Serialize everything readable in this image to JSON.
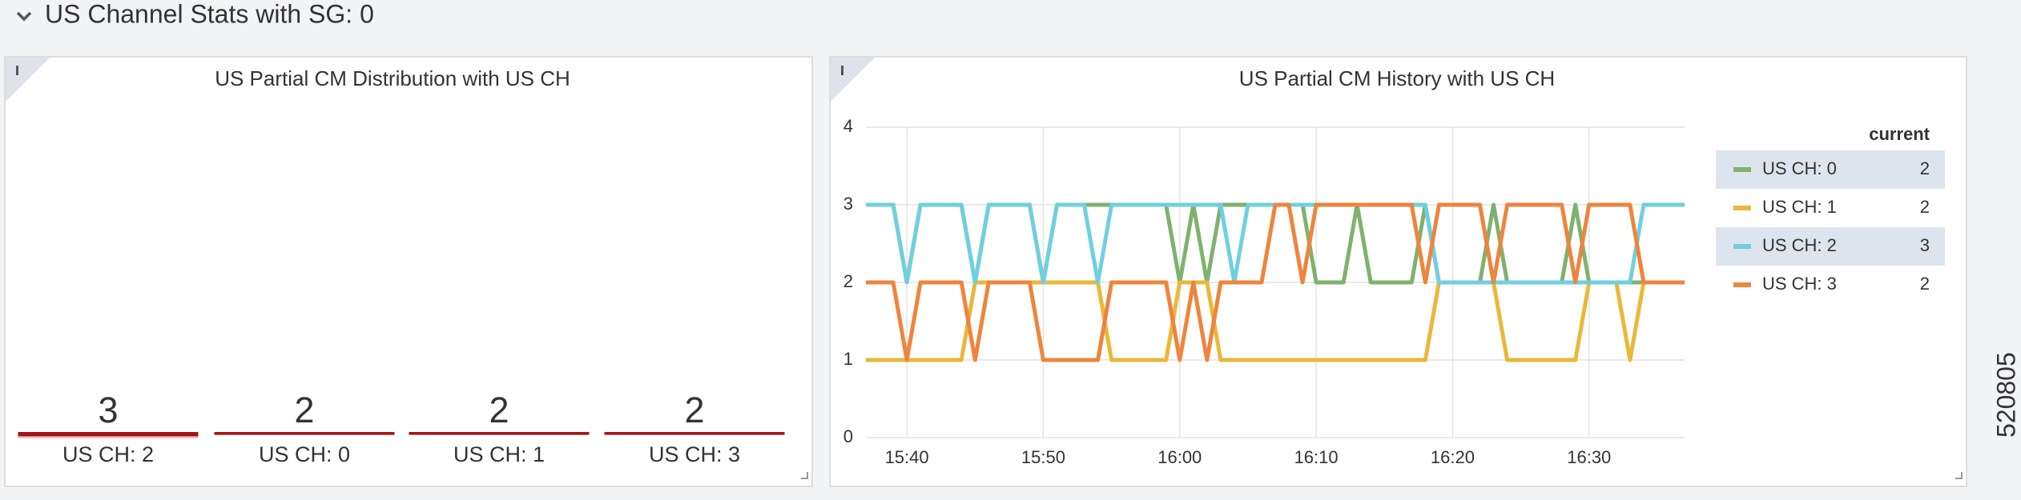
{
  "header": {
    "title": "US Channel Stats with SG: 0"
  },
  "figure_id": "520805",
  "chart_data": [
    {
      "type": "bar",
      "title": "US Partial CM Distribution with US CH",
      "categories": [
        "US CH: 2",
        "US CH: 0",
        "US CH: 1",
        "US CH: 3"
      ],
      "values": [
        3,
        2,
        2,
        2
      ],
      "color": "#a31515"
    },
    {
      "type": "line",
      "title": "US Partial CM History with US CH",
      "x": [
        "15:37",
        "15:38",
        "15:39",
        "15:40",
        "15:41",
        "15:42",
        "15:43",
        "15:44",
        "15:45",
        "15:46",
        "15:47",
        "15:48",
        "15:49",
        "15:50",
        "15:51",
        "15:52",
        "15:53",
        "15:54",
        "15:55",
        "15:56",
        "15:57",
        "15:58",
        "15:59",
        "16:00",
        "16:01",
        "16:02",
        "16:03",
        "16:04",
        "16:05",
        "16:06",
        "16:07",
        "16:08",
        "16:09",
        "16:10",
        "16:11",
        "16:12",
        "16:13",
        "16:14",
        "16:15",
        "16:16",
        "16:17",
        "16:18",
        "16:19",
        "16:20",
        "16:21",
        "16:22",
        "16:23",
        "16:24",
        "16:25",
        "16:26",
        "16:27",
        "16:28",
        "16:29",
        "16:30",
        "16:31",
        "16:32",
        "16:33",
        "16:34",
        "16:35",
        "16:36",
        "16:37"
      ],
      "xlim": [
        "15:37",
        "16:37"
      ],
      "xticks": [
        "15:40",
        "15:50",
        "16:00",
        "16:10",
        "16:20",
        "16:30"
      ],
      "ylim": [
        0,
        4
      ],
      "yticks": [
        0,
        1,
        2,
        3,
        4
      ],
      "grid": true,
      "legend": "right",
      "legend_header": "current",
      "series": [
        {
          "name": "US CH: 0",
          "color": "#7eb26d",
          "current": 2,
          "values": [
            3,
            3,
            3,
            2,
            3,
            3,
            3,
            3,
            2,
            3,
            3,
            3,
            3,
            2,
            3,
            3,
            3,
            3,
            3,
            3,
            3,
            3,
            3,
            2,
            3,
            2,
            3,
            3,
            3,
            3,
            3,
            3,
            3,
            2,
            2,
            2,
            3,
            2,
            2,
            2,
            2,
            3,
            2,
            2,
            2,
            2,
            3,
            2,
            2,
            2,
            2,
            2,
            3,
            2,
            2,
            2,
            2,
            2,
            2,
            2,
            2
          ]
        },
        {
          "name": "US CH: 1",
          "color": "#eab839",
          "current": 2,
          "values": [
            1,
            1,
            1,
            1,
            1,
            1,
            1,
            1,
            2,
            2,
            2,
            2,
            2,
            2,
            2,
            2,
            2,
            2,
            1,
            1,
            1,
            1,
            1,
            2,
            2,
            2,
            1,
            1,
            1,
            1,
            1,
            1,
            1,
            1,
            1,
            1,
            1,
            1,
            1,
            1,
            1,
            1,
            2,
            2,
            2,
            2,
            2,
            1,
            1,
            1,
            1,
            1,
            1,
            2,
            2,
            2,
            1,
            2,
            2,
            2,
            2
          ]
        },
        {
          "name": "US CH: 2",
          "color": "#6ed0e0",
          "current": 3,
          "values": [
            3,
            3,
            3,
            2,
            3,
            3,
            3,
            3,
            2,
            3,
            3,
            3,
            3,
            2,
            3,
            3,
            3,
            2,
            3,
            3,
            3,
            3,
            3,
            3,
            3,
            3,
            3,
            2,
            3,
            3,
            3,
            3,
            3,
            3,
            3,
            3,
            3,
            3,
            3,
            3,
            3,
            3,
            2,
            2,
            2,
            2,
            2,
            2,
            2,
            2,
            2,
            2,
            2,
            2,
            2,
            2,
            2,
            3,
            3,
            3,
            3
          ]
        },
        {
          "name": "US CH: 3",
          "color": "#ef843c",
          "current": 2,
          "values": [
            2,
            2,
            2,
            1,
            2,
            2,
            2,
            2,
            1,
            2,
            2,
            2,
            2,
            1,
            1,
            1,
            1,
            1,
            2,
            2,
            2,
            2,
            2,
            1,
            2,
            1,
            2,
            2,
            2,
            2,
            3,
            3,
            2,
            3,
            3,
            3,
            3,
            3,
            3,
            3,
            3,
            2,
            3,
            3,
            3,
            3,
            2,
            3,
            3,
            3,
            3,
            3,
            2,
            3,
            3,
            3,
            3,
            2,
            2,
            2,
            2
          ]
        }
      ]
    }
  ]
}
